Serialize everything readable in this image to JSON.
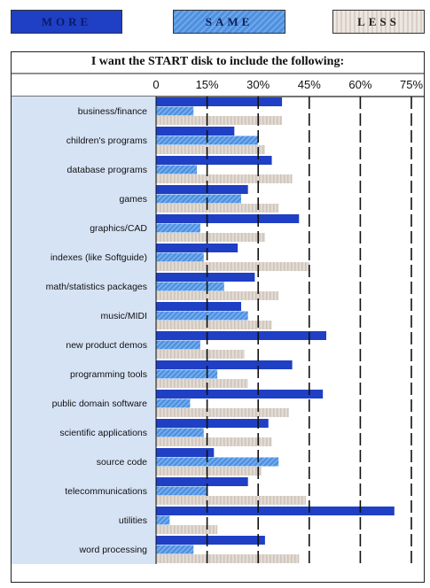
{
  "legend": {
    "more_label": "MORE",
    "same_label": "SAME",
    "less_label": "LESS"
  },
  "colors": {
    "more": "#1f3fc4",
    "same": "#4f90e0",
    "less": "#e2dbd4",
    "label_column": "#d6e3f5"
  },
  "chart_data": {
    "type": "bar",
    "orientation": "horizontal",
    "title": "I want the START disk to include the following:",
    "xlim": [
      0,
      75
    ],
    "ticks": [
      0,
      15,
      30,
      45,
      60,
      75
    ],
    "tick_labels": [
      "0",
      "15%",
      "30%",
      "45%",
      "60%",
      "75%"
    ],
    "categories": [
      "business/finance",
      "children's programs",
      "database programs",
      "games",
      "graphics/CAD",
      "indexes (like Softguide)",
      "math/statistics packages",
      "music/MIDI",
      "new product demos",
      "programming tools",
      "public domain software",
      "scientific applications",
      "source code",
      "telecommunications",
      "utilities",
      "word processing"
    ],
    "series": [
      {
        "name": "MORE",
        "values": [
          37,
          23,
          34,
          27,
          42,
          24,
          29,
          25,
          50,
          40,
          49,
          33,
          17,
          27,
          70,
          32
        ]
      },
      {
        "name": "SAME",
        "values": [
          11,
          30,
          12,
          25,
          13,
          14,
          20,
          27,
          13,
          18,
          10,
          14,
          36,
          15,
          4,
          11
        ]
      },
      {
        "name": "LESS",
        "values": [
          37,
          32,
          40,
          36,
          32,
          45,
          36,
          34,
          26,
          27,
          39,
          34,
          31,
          44,
          18,
          42
        ]
      }
    ]
  }
}
